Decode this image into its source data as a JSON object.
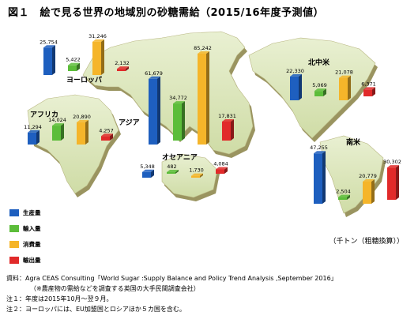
{
  "title": "図１　絵で見る世界の地域別の砂糖需給（2015/16年度予測値）",
  "unit_label": "（千トン（粗糖換算））",
  "legend": [
    {
      "label": "生産量",
      "color": "#1e5fbf"
    },
    {
      "label": "輸入量",
      "color": "#5cbd3a"
    },
    {
      "label": "消費量",
      "color": "#f5b52a"
    },
    {
      "label": "輸出量",
      "color": "#e12a2a"
    }
  ],
  "notes": {
    "source": "資料：Agra CEAS Consulting「World Sugar :Supply Balance and Policy Trend Analysis ,September 2016」",
    "source_sub": "（※農産物の需給などを調査する英国の大手民間調査会社）",
    "note1": "注１：年度は2015年10月～翌９月。",
    "note2": "注２：ヨーロッパには、EU加盟国とロシアほか５カ国を含む。"
  },
  "chart_data": {
    "type": "bar",
    "title": "図１　絵で見る世界の地域別の砂糖需給（2015/16年度予測値）",
    "unit": "千トン（粗糖換算）",
    "categories": [
      "生産量",
      "輸入量",
      "消費量",
      "輸出量"
    ],
    "series": [
      {
        "name": "ヨーロッパ",
        "values": [
          25754,
          5422,
          31246,
          2132
        ]
      },
      {
        "name": "アフリカ",
        "values": [
          11294,
          14024,
          20890,
          4257
        ]
      },
      {
        "name": "アジア",
        "values": [
          61679,
          34772,
          85242,
          17831
        ]
      },
      {
        "name": "オセアニア",
        "values": [
          5348,
          482,
          1730,
          4084
        ]
      },
      {
        "name": "北中米",
        "values": [
          22330,
          5069,
          21078,
          6371
        ]
      },
      {
        "name": "南米",
        "values": [
          47255,
          2504,
          20779,
          30302
        ]
      }
    ]
  }
}
